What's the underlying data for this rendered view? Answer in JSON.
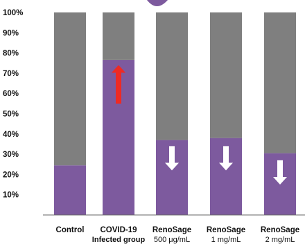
{
  "chart_data": {
    "type": "bar",
    "stacked": true,
    "ylim": [
      0,
      100
    ],
    "yticks": [
      "10%",
      "20%",
      "30%",
      "40%",
      "50%",
      "60%",
      "70%",
      "80%",
      "90%",
      "100%"
    ],
    "ytick_values": [
      10,
      20,
      30,
      40,
      50,
      60,
      70,
      80,
      90,
      100
    ],
    "categories": [
      {
        "line1": "Control",
        "line2": ""
      },
      {
        "line1": "COVID-19",
        "line2": "Infected group"
      },
      {
        "line1": "RenoSage",
        "line2": "500 μg/mL"
      },
      {
        "line1": "RenoSage",
        "line2": "1 mg/mL"
      },
      {
        "line1": "RenoSage",
        "line2": "2 mg/mL"
      }
    ],
    "series": [
      {
        "values": [
          24.5,
          76.5,
          37,
          38,
          30.5
        ],
        "color": "#7d5a9e"
      },
      {
        "values": [
          75.5,
          23.5,
          63,
          62,
          69.5
        ],
        "color": "#7f7f7f"
      }
    ],
    "arrows": [
      {
        "category": 1,
        "direction": "up",
        "color": "#ee2a24",
        "from": 55,
        "to": 74
      },
      {
        "category": 2,
        "direction": "down",
        "color": "#ffffff",
        "from": 34,
        "to": 22
      },
      {
        "category": 3,
        "direction": "down",
        "color": "#ffffff",
        "from": 34,
        "to": 22
      },
      {
        "category": 4,
        "direction": "down",
        "color": "#ffffff",
        "from": 27,
        "to": 15
      }
    ],
    "grid": false,
    "legend": "none"
  }
}
